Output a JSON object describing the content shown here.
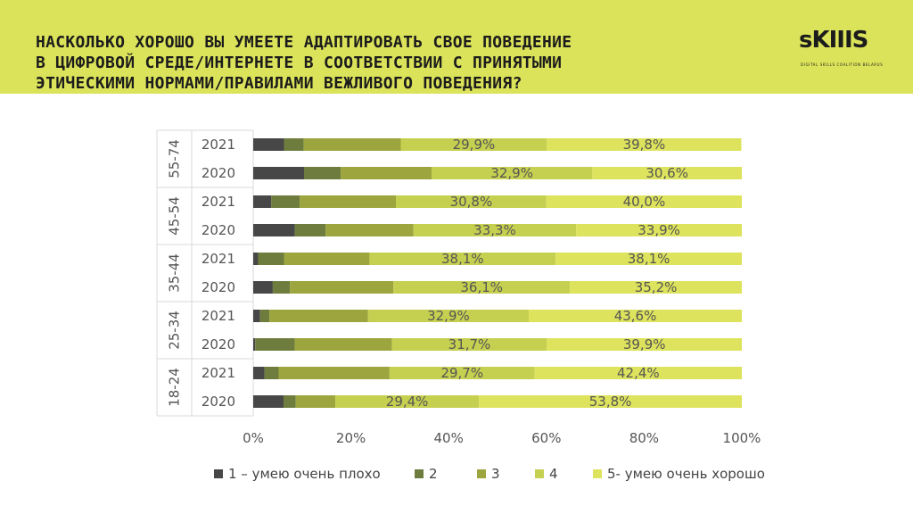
{
  "header": {
    "title_lines": [
      "НАСКОЛЬКО ХОРОШО ВЫ УМЕЕТЕ АДАПТИРОВАТЬ СВОЕ ПОВЕДЕНИЕ",
      "В ЦИФРОВОЙ СРЕДЕ/ИНТЕРНЕТЕ В СООТВЕТСТВИИ С ПРИНЯТЫМИ",
      "ЭТИЧЕСКИМИ НОРМАМИ/ПРАВИЛАМИ ВЕЖЛИВОГО ПОВЕДЕНИЯ?"
    ],
    "logo_text": "sKIIIS",
    "logo_tagline": "DIGITAL SKILLS COALITION BELARUS",
    "background_color": "#dbe35a"
  },
  "chart_data": {
    "type": "bar",
    "orientation": "horizontal",
    "stacked": "100%",
    "title": "НАСКОЛЬКО ХОРОШО ВЫ УМЕЕТЕ АДАПТИРОВАТЬ СВОЕ ПОВЕДЕНИЕ В ЦИФРОВОЙ СРЕДЕ/ИНТЕРНЕТЕ В СООТВЕТСТВИИ С ПРИНЯТЫМИ ЭТИЧЕСКИМИ НОРМАМИ/ПРАВИЛАМИ ВЕЖЛИВОГО ПОВЕДЕНИЯ?",
    "groups": [
      {
        "name": "55-74",
        "rows": [
          {
            "year": "2021",
            "values": [
              6.3,
              4.0,
              19.9,
              29.9,
              39.8
            ]
          },
          {
            "year": "2020",
            "values": [
              10.4,
              7.5,
              18.6,
              32.9,
              30.6
            ]
          }
        ]
      },
      {
        "name": "45-54",
        "rows": [
          {
            "year": "2021",
            "values": [
              3.7,
              5.8,
              19.7,
              30.8,
              40.0
            ]
          },
          {
            "year": "2020",
            "values": [
              8.5,
              6.3,
              18.0,
              33.3,
              33.9
            ]
          }
        ]
      },
      {
        "name": "35-44",
        "rows": [
          {
            "year": "2021",
            "values": [
              1.0,
              5.3,
              17.5,
              38.1,
              38.1
            ]
          },
          {
            "year": "2020",
            "values": [
              4.0,
              3.5,
              21.2,
              36.1,
              35.2
            ]
          }
        ]
      },
      {
        "name": "25-34",
        "rows": [
          {
            "year": "2021",
            "values": [
              1.4,
              1.9,
              20.2,
              32.9,
              43.6
            ]
          },
          {
            "year": "2020",
            "values": [
              0.4,
              8.1,
              19.9,
              31.7,
              39.9
            ]
          }
        ]
      },
      {
        "name": "18-24",
        "rows": [
          {
            "year": "2021",
            "values": [
              2.3,
              2.9,
              22.7,
              29.7,
              42.4
            ]
          },
          {
            "year": "2020",
            "values": [
              6.2,
              2.5,
              8.1,
              29.4,
              53.8
            ]
          }
        ]
      }
    ],
    "labeled_series": [
      3,
      4
    ],
    "series": [
      {
        "name": "1 – умею очень плохо",
        "color": "#474747"
      },
      {
        "name": "2",
        "color": "#6e7d3e"
      },
      {
        "name": "3",
        "color": "#9ca53e"
      },
      {
        "name": "4",
        "color": "#c6d050"
      },
      {
        "name": "5- умею очень хорошо",
        "color": "#dde35c"
      }
    ],
    "xlim": [
      0,
      100
    ],
    "x_ticks": [
      "0%",
      "20%",
      "40%",
      "60%",
      "80%",
      "100%"
    ],
    "legend_position": "bottom"
  }
}
